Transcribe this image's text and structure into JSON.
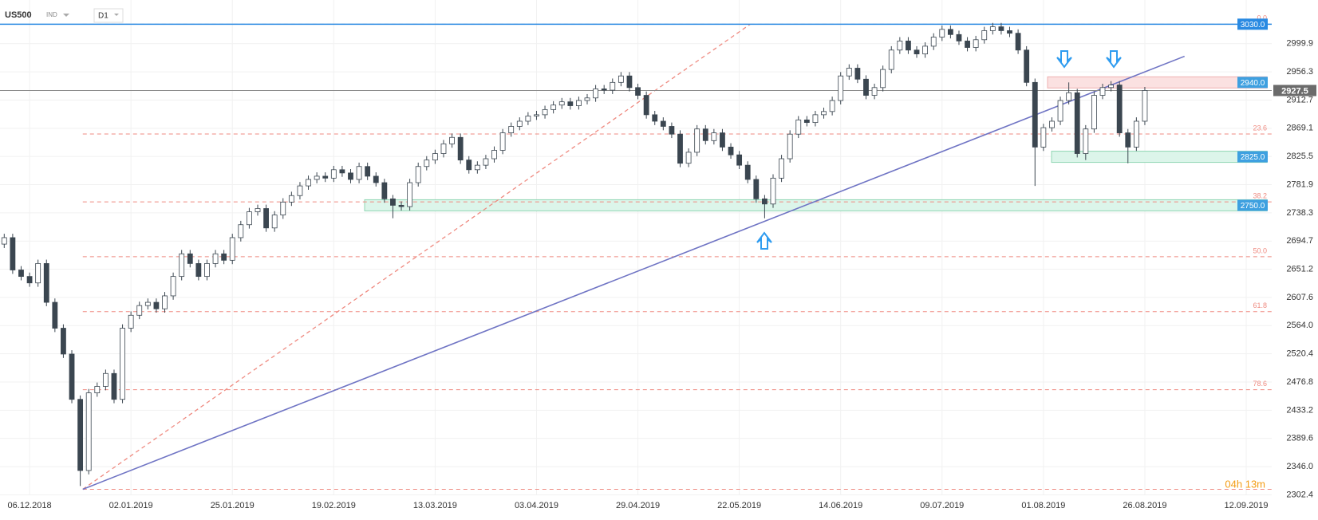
{
  "header": {
    "symbol": "US500",
    "market": "IND",
    "timeframe": "D1"
  },
  "chart_data": {
    "type": "candlestick",
    "categories": [
      null,
      null,
      null,
      "06.12.2018",
      null,
      null,
      null,
      null,
      null,
      null,
      null,
      null,
      null,
      null,
      null,
      "02.01.2019",
      null,
      null,
      null,
      null,
      null,
      null,
      null,
      null,
      null,
      null,
      null,
      "25.01.2019",
      null,
      null,
      null,
      null,
      null,
      null,
      null,
      null,
      null,
      null,
      null,
      "19.02.2019",
      null,
      null,
      null,
      null,
      null,
      null,
      null,
      null,
      null,
      null,
      null,
      "13.03.2019",
      null,
      null,
      null,
      null,
      null,
      null,
      null,
      null,
      null,
      null,
      null,
      "03.04.2019",
      null,
      null,
      null,
      null,
      null,
      null,
      null,
      null,
      null,
      null,
      null,
      "29.04.2019",
      null,
      null,
      null,
      null,
      null,
      null,
      null,
      null,
      null,
      null,
      null,
      "22.05.2019",
      null,
      null,
      null,
      null,
      null,
      null,
      null,
      null,
      null,
      null,
      null,
      "14.06.2019",
      null,
      null,
      null,
      null,
      null,
      null,
      null,
      null,
      null,
      null,
      null,
      "09.07.2019",
      null,
      null,
      null,
      null,
      null,
      null,
      null,
      null,
      null,
      null,
      null,
      "01.08.2019",
      null,
      null,
      null,
      null,
      null,
      null,
      null,
      null,
      null,
      null,
      null,
      "26.08.2019",
      null,
      null,
      null,
      null,
      null,
      null,
      null,
      null,
      null,
      null,
      null,
      "12.09.2019"
    ],
    "open": [
      2690,
      2700,
      2650,
      2640,
      2630,
      2660,
      2600,
      2560,
      2520,
      2450,
      2340,
      2460,
      2470,
      2490,
      2450,
      2560,
      2580,
      2595,
      2600,
      2590,
      2610,
      2640,
      2675,
      2660,
      2640,
      2660,
      2675,
      2665,
      2700,
      2720,
      2740,
      2745,
      2715,
      2735,
      2755,
      2765,
      2780,
      2790,
      2795,
      2792,
      2805,
      2800,
      2790,
      2810,
      2795,
      2785,
      2760,
      2750,
      2748,
      2785,
      2810,
      2820,
      2830,
      2845,
      2855,
      2820,
      2805,
      2812,
      2822,
      2835,
      2862,
      2872,
      2880,
      2888,
      2890,
      2898,
      2905,
      2910,
      2904,
      2912,
      2916,
      2930,
      2928,
      2940,
      2950,
      2932,
      2920,
      2890,
      2880,
      2872,
      2860,
      2815,
      2832,
      2868,
      2850,
      2862,
      2840,
      2828,
      2812,
      2790,
      2760,
      2752,
      2792,
      2822,
      2860,
      2882,
      2878,
      2890,
      2895,
      2912,
      2950,
      2962,
      2945,
      2920,
      2932,
      2960,
      2990,
      3004,
      2990,
      2984,
      2996,
      3010,
      3022,
      3014,
      3004,
      2994,
      3006,
      3020,
      3026,
      3020,
      3016,
      2990,
      2940,
      2840,
      2870,
      2880,
      2912,
      2924,
      2830,
      2868,
      2920,
      2932,
      2936,
      2862,
      2840,
      2880,
      null,
      null,
      null,
      null,
      null,
      null,
      null,
      null,
      null,
      null,
      null,
      null
    ],
    "high": [
      2706,
      2706,
      2656,
      2646,
      2666,
      2666,
      2606,
      2566,
      2526,
      2456,
      2466,
      2476,
      2496,
      2496,
      2566,
      2586,
      2601,
      2606,
      2606,
      2616,
      2646,
      2681,
      2681,
      2666,
      2666,
      2681,
      2681,
      2706,
      2726,
      2746,
      2751,
      2751,
      2741,
      2761,
      2771,
      2786,
      2796,
      2801,
      2801,
      2811,
      2811,
      2806,
      2816,
      2816,
      2801,
      2791,
      2766,
      2756,
      2791,
      2816,
      2826,
      2836,
      2851,
      2861,
      2861,
      2826,
      2818,
      2828,
      2841,
      2868,
      2878,
      2886,
      2894,
      2896,
      2904,
      2911,
      2916,
      2916,
      2918,
      2922,
      2936,
      2936,
      2946,
      2956,
      2956,
      2938,
      2926,
      2896,
      2886,
      2878,
      2866,
      2838,
      2874,
      2874,
      2868,
      2868,
      2846,
      2834,
      2818,
      2796,
      2766,
      2798,
      2828,
      2866,
      2888,
      2888,
      2896,
      2901,
      2918,
      2956,
      2968,
      2968,
      2951,
      2938,
      2966,
      2996,
      3010,
      3010,
      2996,
      3002,
      3016,
      3028,
      3028,
      3020,
      3010,
      3012,
      3026,
      3032,
      3032,
      3026,
      3022,
      2996,
      2946,
      2876,
      2886,
      2918,
      2940,
      2930,
      2874,
      2926,
      2938,
      2942,
      2942,
      2868,
      2886,
      2933,
      null,
      null,
      null,
      null,
      null,
      null,
      null,
      null,
      null,
      null,
      null,
      null
    ],
    "low": [
      2684,
      2644,
      2634,
      2624,
      2624,
      2594,
      2554,
      2514,
      2444,
      2316,
      2334,
      2454,
      2464,
      2444,
      2444,
      2554,
      2574,
      2589,
      2584,
      2584,
      2604,
      2634,
      2654,
      2634,
      2634,
      2654,
      2659,
      2659,
      2694,
      2714,
      2734,
      2709,
      2709,
      2729,
      2749,
      2759,
      2774,
      2784,
      2786,
      2786,
      2794,
      2784,
      2784,
      2789,
      2779,
      2754,
      2730,
      2742,
      2742,
      2779,
      2804,
      2814,
      2824,
      2839,
      2814,
      2799,
      2799,
      2806,
      2816,
      2829,
      2856,
      2866,
      2874,
      2882,
      2884,
      2892,
      2899,
      2898,
      2898,
      2906,
      2910,
      2922,
      2922,
      2934,
      2926,
      2914,
      2884,
      2874,
      2866,
      2854,
      2809,
      2809,
      2826,
      2844,
      2844,
      2834,
      2822,
      2806,
      2784,
      2754,
      2730,
      2746,
      2786,
      2816,
      2854,
      2872,
      2872,
      2884,
      2889,
      2906,
      2944,
      2939,
      2914,
      2914,
      2926,
      2954,
      2984,
      2984,
      2978,
      2978,
      2990,
      3004,
      3008,
      2998,
      2988,
      2988,
      3000,
      3014,
      3014,
      3010,
      2984,
      2934,
      2780,
      2834,
      2864,
      2874,
      2906,
      2824,
      2820,
      2862,
      2914,
      2926,
      2856,
      2815,
      2834,
      2874,
      null,
      null,
      null,
      null,
      null,
      null,
      null,
      null,
      null,
      null,
      null,
      null
    ],
    "close": [
      2700,
      2650,
      2640,
      2630,
      2660,
      2600,
      2560,
      2520,
      2450,
      2340,
      2460,
      2470,
      2490,
      2450,
      2560,
      2580,
      2595,
      2600,
      2590,
      2610,
      2640,
      2675,
      2660,
      2640,
      2660,
      2675,
      2665,
      2700,
      2720,
      2740,
      2745,
      2715,
      2735,
      2755,
      2765,
      2780,
      2790,
      2795,
      2792,
      2805,
      2800,
      2790,
      2810,
      2795,
      2785,
      2760,
      2750,
      2748,
      2785,
      2810,
      2820,
      2830,
      2845,
      2855,
      2820,
      2805,
      2812,
      2822,
      2835,
      2862,
      2872,
      2880,
      2888,
      2890,
      2898,
      2905,
      2910,
      2904,
      2912,
      2916,
      2930,
      2928,
      2940,
      2950,
      2932,
      2920,
      2890,
      2880,
      2872,
      2860,
      2815,
      2832,
      2868,
      2850,
      2862,
      2840,
      2828,
      2812,
      2790,
      2760,
      2752,
      2792,
      2822,
      2860,
      2882,
      2878,
      2890,
      2895,
      2912,
      2950,
      2962,
      2945,
      2920,
      2932,
      2960,
      2990,
      3004,
      2990,
      2984,
      2996,
      3010,
      3022,
      3014,
      3004,
      2994,
      3006,
      3020,
      3026,
      3020,
      3016,
      2990,
      2940,
      2840,
      2870,
      2880,
      2912,
      2924,
      2830,
      2868,
      2920,
      2932,
      2936,
      2862,
      2840,
      2880,
      2927.5,
      null,
      null,
      null,
      null,
      null,
      null,
      null,
      null,
      null,
      null,
      null,
      null
    ],
    "up_color": "#ffffff",
    "down_color": "#3b4650",
    "outline_color": "#3b4650",
    "ylim": [
      2275.8,
      3067.4
    ],
    "yticks": [
      2999.9,
      2956.3,
      2912.7,
      2869.1,
      2825.5,
      2781.9,
      2738.3,
      2694.7,
      2651.2,
      2607.6,
      {
        "value": 2564,
        "label": "2564.0"
      },
      2520.4,
      2476.8,
      2433.2,
      2389.6,
      {
        "value": 2346,
        "label": "2346.0"
      },
      2302.4
    ],
    "grid": true,
    "resistance_line": {
      "value": 3030,
      "label": "3030.0",
      "color": "#2a8ae2"
    },
    "current_price": {
      "value": 2927.5,
      "color": "#8a8a8a"
    },
    "zones": [
      {
        "value": 2940,
        "label": "2940.0",
        "color": "#fbe1e1",
        "edge": "#efb0b0"
      },
      {
        "value": 2825,
        "label": "2825.0",
        "color": "#dcf5ea",
        "edge": "#8fd6b3"
      },
      {
        "value": 2750,
        "label": "2750.0",
        "color": "#dcf5ea",
        "edge": "#8fd6b3"
      }
    ],
    "fibonacci": {
      "high": 3030,
      "low": 2311,
      "color": "#ef8a80",
      "levels": [
        {
          "value": 0,
          "label": "0.0"
        },
        23.6,
        38.2,
        {
          "value": 50,
          "label": "50.0"
        },
        61.8,
        78.6
      ]
    },
    "trendline": {
      "x": [
        9.3,
        139.7
      ],
      "y": [
        2311,
        2980.4
      ],
      "color": "#6f74c4"
    },
    "fib_diagonal": {
      "x": [
        9.3,
        88.3
      ],
      "y": [
        2311,
        3030
      ]
    },
    "countdown": "04h 13m"
  }
}
